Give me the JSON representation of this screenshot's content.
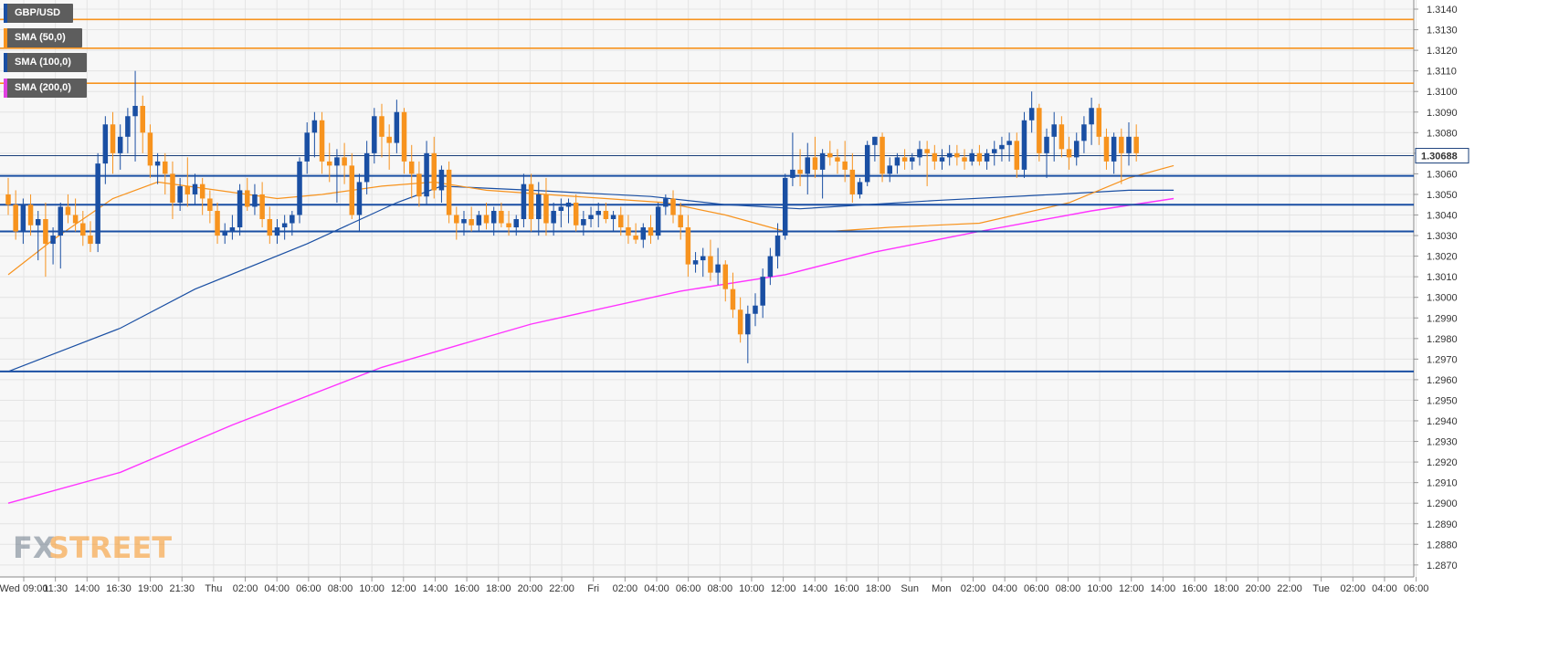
{
  "legend": [
    {
      "label": "GBP/USD",
      "color": "#1a4fa3"
    },
    {
      "label": "SMA (50,0)",
      "color": "#f7931e"
    },
    {
      "label": "SMA (100,0)",
      "color": "#1a4fa3"
    },
    {
      "label": "SMA (200,0)",
      "color": "#e040e0"
    }
  ],
  "price_tag": "1.30688",
  "logo": {
    "fx": "FX",
    "street": "STREET"
  },
  "colors": {
    "up": "#1a4fa3",
    "down": "#f7931e",
    "sma50": "#f7931e",
    "sma100": "#1a4fa3",
    "sma200": "#ff33ff",
    "level": "#1a4fa3",
    "resistance": "#f7931e"
  },
  "chart_data": {
    "type": "candlestick",
    "symbol": "GBP/USD",
    "ylim": [
      1.2865,
      1.3145
    ],
    "yticks": [
      "1.3140",
      "1.3130",
      "1.3120",
      "1.3110",
      "1.3100",
      "1.3090",
      "1.3080",
      "1.3070",
      "1.3060",
      "1.3050",
      "1.3040",
      "1.3030",
      "1.3020",
      "1.3010",
      "1.3000",
      "1.2990",
      "1.2980",
      "1.2970",
      "1.2960",
      "1.2950",
      "1.2940",
      "1.2930",
      "1.2920",
      "1.2910",
      "1.2900",
      "1.2890",
      "1.2880",
      "1.2870"
    ],
    "xticks": [
      "Wed 09:00",
      "11:30",
      "14:00",
      "16:30",
      "19:00",
      "21:30",
      "Thu",
      "02:00",
      "04:00",
      "06:00",
      "08:00",
      "10:00",
      "12:00",
      "14:00",
      "16:00",
      "18:00",
      "20:00",
      "22:00",
      "Fri",
      "02:00",
      "04:00",
      "06:00",
      "08:00",
      "10:00",
      "12:00",
      "14:00",
      "16:00",
      "18:00",
      "Sun",
      "Mon",
      "02:00",
      "04:00",
      "06:00",
      "08:00",
      "10:00",
      "12:00",
      "14:00",
      "16:00",
      "18:00",
      "20:00",
      "22:00",
      "Tue",
      "02:00",
      "04:00",
      "06:00"
    ],
    "horizontal_levels": [
      {
        "value": 1.3135,
        "kind": "resistance"
      },
      {
        "value": 1.3121,
        "kind": "resistance"
      },
      {
        "value": 1.3104,
        "kind": "resistance"
      },
      {
        "value": 1.30688,
        "kind": "current"
      },
      {
        "value": 1.3059,
        "kind": "support"
      },
      {
        "value": 1.3045,
        "kind": "support"
      },
      {
        "value": 1.3032,
        "kind": "support"
      },
      {
        "value": 1.2964,
        "kind": "support"
      }
    ],
    "candles": [
      [
        1.305,
        1.3058,
        1.304,
        1.3045
      ],
      [
        1.3045,
        1.3052,
        1.3028,
        1.3032
      ],
      [
        1.3032,
        1.3048,
        1.3026,
        1.3045
      ],
      [
        1.3045,
        1.305,
        1.303,
        1.3035
      ],
      [
        1.3035,
        1.3042,
        1.3018,
        1.3038
      ],
      [
        1.3038,
        1.3046,
        1.301,
        1.3026
      ],
      [
        1.3026,
        1.3034,
        1.3016,
        1.303
      ],
      [
        1.303,
        1.3046,
        1.3014,
        1.3044
      ],
      [
        1.3044,
        1.305,
        1.3036,
        1.304
      ],
      [
        1.304,
        1.3048,
        1.3032,
        1.3036
      ],
      [
        1.3036,
        1.3042,
        1.3025,
        1.303
      ],
      [
        1.303,
        1.3037,
        1.3022,
        1.3026
      ],
      [
        1.3026,
        1.307,
        1.3022,
        1.3065
      ],
      [
        1.3065,
        1.3088,
        1.3055,
        1.3084
      ],
      [
        1.3084,
        1.309,
        1.306,
        1.307
      ],
      [
        1.307,
        1.3084,
        1.3062,
        1.3078
      ],
      [
        1.3078,
        1.3092,
        1.307,
        1.3088
      ],
      [
        1.3088,
        1.311,
        1.3066,
        1.3093
      ],
      [
        1.3093,
        1.3098,
        1.307,
        1.308
      ],
      [
        1.308,
        1.3084,
        1.3058,
        1.3064
      ],
      [
        1.3064,
        1.307,
        1.3055,
        1.3066
      ],
      [
        1.3066,
        1.307,
        1.305,
        1.306
      ],
      [
        1.306,
        1.3066,
        1.3038,
        1.3046
      ],
      [
        1.3046,
        1.3058,
        1.3042,
        1.3054
      ],
      [
        1.3054,
        1.3068,
        1.3044,
        1.305
      ],
      [
        1.305,
        1.306,
        1.3045,
        1.3055
      ],
      [
        1.3055,
        1.3058,
        1.304,
        1.3048
      ],
      [
        1.3048,
        1.3052,
        1.3036,
        1.3042
      ],
      [
        1.3042,
        1.3046,
        1.3026,
        1.303
      ],
      [
        1.303,
        1.3036,
        1.3026,
        1.3032
      ],
      [
        1.3032,
        1.304,
        1.3028,
        1.3034
      ],
      [
        1.3034,
        1.3055,
        1.303,
        1.3052
      ],
      [
        1.3052,
        1.3058,
        1.3042,
        1.3044
      ],
      [
        1.3044,
        1.3055,
        1.304,
        1.305
      ],
      [
        1.305,
        1.3056,
        1.3034,
        1.3038
      ],
      [
        1.3038,
        1.3044,
        1.3026,
        1.303
      ],
      [
        1.303,
        1.3038,
        1.3026,
        1.3034
      ],
      [
        1.3034,
        1.304,
        1.3028,
        1.3036
      ],
      [
        1.3036,
        1.3042,
        1.303,
        1.304
      ],
      [
        1.304,
        1.3068,
        1.3036,
        1.3066
      ],
      [
        1.3066,
        1.3085,
        1.306,
        1.308
      ],
      [
        1.308,
        1.309,
        1.3068,
        1.3086
      ],
      [
        1.3086,
        1.309,
        1.306,
        1.3066
      ],
      [
        1.3066,
        1.3075,
        1.3056,
        1.3064
      ],
      [
        1.3064,
        1.3072,
        1.3046,
        1.3068
      ],
      [
        1.3068,
        1.3075,
        1.3055,
        1.3064
      ],
      [
        1.3064,
        1.307,
        1.3038,
        1.304
      ],
      [
        1.304,
        1.306,
        1.3032,
        1.3056
      ],
      [
        1.3056,
        1.3076,
        1.305,
        1.307
      ],
      [
        1.307,
        1.3092,
        1.3065,
        1.3088
      ],
      [
        1.3088,
        1.3094,
        1.3068,
        1.3078
      ],
      [
        1.3078,
        1.3084,
        1.3062,
        1.3075
      ],
      [
        1.3075,
        1.3096,
        1.307,
        1.309
      ],
      [
        1.309,
        1.3092,
        1.306,
        1.3066
      ],
      [
        1.3066,
        1.3074,
        1.3048,
        1.306
      ],
      [
        1.306,
        1.3066,
        1.3044,
        1.3049
      ],
      [
        1.3049,
        1.3076,
        1.3045,
        1.307
      ],
      [
        1.307,
        1.3078,
        1.3048,
        1.3052
      ],
      [
        1.3052,
        1.3064,
        1.3046,
        1.3062
      ],
      [
        1.3062,
        1.3066,
        1.3036,
        1.304
      ],
      [
        1.304,
        1.3044,
        1.3028,
        1.3036
      ],
      [
        1.3036,
        1.3042,
        1.303,
        1.3038
      ],
      [
        1.3038,
        1.3044,
        1.3032,
        1.3035
      ],
      [
        1.3035,
        1.3042,
        1.3032,
        1.304
      ],
      [
        1.304,
        1.3046,
        1.3033,
        1.3036
      ],
      [
        1.3036,
        1.3044,
        1.303,
        1.3042
      ],
      [
        1.3042,
        1.3046,
        1.3034,
        1.3036
      ],
      [
        1.3036,
        1.3042,
        1.303,
        1.3034
      ],
      [
        1.3034,
        1.304,
        1.303,
        1.3038
      ],
      [
        1.3038,
        1.306,
        1.3034,
        1.3055
      ],
      [
        1.3055,
        1.306,
        1.3032,
        1.3038
      ],
      [
        1.3038,
        1.3056,
        1.303,
        1.305
      ],
      [
        1.305,
        1.3058,
        1.303,
        1.3036
      ],
      [
        1.3036,
        1.3046,
        1.303,
        1.3042
      ],
      [
        1.3042,
        1.3048,
        1.3034,
        1.3044
      ],
      [
        1.3044,
        1.3048,
        1.3036,
        1.3046
      ],
      [
        1.3046,
        1.305,
        1.3032,
        1.3035
      ],
      [
        1.3035,
        1.3042,
        1.303,
        1.3038
      ],
      [
        1.3038,
        1.3044,
        1.3034,
        1.304
      ],
      [
        1.304,
        1.3046,
        1.3034,
        1.3042
      ],
      [
        1.3042,
        1.3046,
        1.3036,
        1.3038
      ],
      [
        1.3038,
        1.3042,
        1.3032,
        1.304
      ],
      [
        1.304,
        1.3044,
        1.303,
        1.3034
      ],
      [
        1.3034,
        1.304,
        1.3026,
        1.303
      ],
      [
        1.303,
        1.3036,
        1.3026,
        1.3028
      ],
      [
        1.3028,
        1.3036,
        1.3024,
        1.3034
      ],
      [
        1.3034,
        1.304,
        1.3026,
        1.303
      ],
      [
        1.303,
        1.3046,
        1.3028,
        1.3044
      ],
      [
        1.3044,
        1.305,
        1.304,
        1.3048
      ],
      [
        1.3048,
        1.3052,
        1.3036,
        1.304
      ],
      [
        1.304,
        1.3046,
        1.3028,
        1.3034
      ],
      [
        1.3034,
        1.304,
        1.301,
        1.3016
      ],
      [
        1.3016,
        1.3022,
        1.3012,
        1.3018
      ],
      [
        1.3018,
        1.3024,
        1.301,
        1.302
      ],
      [
        1.302,
        1.3028,
        1.3008,
        1.3012
      ],
      [
        1.3012,
        1.3024,
        1.3006,
        1.3016
      ],
      [
        1.3016,
        1.3018,
        1.2998,
        1.3004
      ],
      [
        1.3004,
        1.3012,
        1.299,
        1.2994
      ],
      [
        1.2994,
        1.3,
        1.2978,
        1.2982
      ],
      [
        1.2982,
        1.2996,
        1.2968,
        1.2992
      ],
      [
        1.2992,
        1.3002,
        1.2986,
        1.2996
      ],
      [
        1.2996,
        1.3014,
        1.299,
        1.301
      ],
      [
        1.301,
        1.3024,
        1.3006,
        1.302
      ],
      [
        1.302,
        1.3036,
        1.3014,
        1.303
      ],
      [
        1.303,
        1.306,
        1.3028,
        1.3058
      ],
      [
        1.3058,
        1.308,
        1.3054,
        1.3062
      ],
      [
        1.3062,
        1.3072,
        1.3054,
        1.306
      ],
      [
        1.306,
        1.3075,
        1.305,
        1.3068
      ],
      [
        1.3068,
        1.3078,
        1.3058,
        1.3062
      ],
      [
        1.3062,
        1.3072,
        1.3048,
        1.307
      ],
      [
        1.307,
        1.3076,
        1.3064,
        1.3068
      ],
      [
        1.3068,
        1.3072,
        1.306,
        1.3066
      ],
      [
        1.3066,
        1.3076,
        1.3056,
        1.3062
      ],
      [
        1.3062,
        1.307,
        1.3046,
        1.305
      ],
      [
        1.305,
        1.3058,
        1.3048,
        1.3056
      ],
      [
        1.3056,
        1.3076,
        1.3054,
        1.3074
      ],
      [
        1.3074,
        1.3078,
        1.3066,
        1.3078
      ],
      [
        1.3078,
        1.308,
        1.3056,
        1.306
      ],
      [
        1.306,
        1.3068,
        1.3056,
        1.3064
      ],
      [
        1.3064,
        1.307,
        1.306,
        1.3068
      ],
      [
        1.3068,
        1.3072,
        1.3062,
        1.3066
      ],
      [
        1.3066,
        1.307,
        1.3062,
        1.3068
      ],
      [
        1.3068,
        1.3076,
        1.3064,
        1.3072
      ],
      [
        1.3072,
        1.3076,
        1.3054,
        1.307
      ],
      [
        1.307,
        1.3074,
        1.3062,
        1.3066
      ],
      [
        1.3066,
        1.3072,
        1.3062,
        1.3068
      ],
      [
        1.3068,
        1.3074,
        1.3064,
        1.307
      ],
      [
        1.307,
        1.3074,
        1.3064,
        1.3068
      ],
      [
        1.3068,
        1.3072,
        1.3062,
        1.3066
      ],
      [
        1.3066,
        1.3072,
        1.3064,
        1.307
      ],
      [
        1.307,
        1.3074,
        1.3064,
        1.3066
      ],
      [
        1.3066,
        1.3072,
        1.3062,
        1.307
      ],
      [
        1.307,
        1.3076,
        1.3064,
        1.3072
      ],
      [
        1.3072,
        1.3078,
        1.3066,
        1.3074
      ],
      [
        1.3074,
        1.308,
        1.3066,
        1.3076
      ],
      [
        1.3076,
        1.308,
        1.3058,
        1.3062
      ],
      [
        1.3062,
        1.309,
        1.3058,
        1.3086
      ],
      [
        1.3086,
        1.31,
        1.308,
        1.3092
      ],
      [
        1.3092,
        1.3094,
        1.3066,
        1.307
      ],
      [
        1.307,
        1.3082,
        1.3058,
        1.3078
      ],
      [
        1.3078,
        1.309,
        1.3066,
        1.3084
      ],
      [
        1.3084,
        1.3088,
        1.3068,
        1.3072
      ],
      [
        1.3072,
        1.3078,
        1.3062,
        1.3068
      ],
      [
        1.3068,
        1.308,
        1.3064,
        1.3076
      ],
      [
        1.3076,
        1.3088,
        1.307,
        1.3084
      ],
      [
        1.3084,
        1.3097,
        1.3074,
        1.3092
      ],
      [
        1.3092,
        1.3094,
        1.3074,
        1.3078
      ],
      [
        1.3078,
        1.3082,
        1.3062,
        1.3066
      ],
      [
        1.3066,
        1.308,
        1.306,
        1.3078
      ],
      [
        1.3078,
        1.3082,
        1.3055,
        1.307
      ],
      [
        1.307,
        1.3085,
        1.3064,
        1.3078
      ],
      [
        1.3078,
        1.3084,
        1.3066,
        1.307
      ]
    ],
    "sma50": [
      [
        0,
        1.3011
      ],
      [
        6,
        1.3028
      ],
      [
        14,
        1.3048
      ],
      [
        20,
        1.3056
      ],
      [
        28,
        1.3052
      ],
      [
        36,
        1.3048
      ],
      [
        42,
        1.305
      ],
      [
        50,
        1.3054
      ],
      [
        57,
        1.3056
      ],
      [
        64,
        1.3052
      ],
      [
        72,
        1.305
      ],
      [
        80,
        1.3048
      ],
      [
        88,
        1.3046
      ],
      [
        96,
        1.304
      ],
      [
        104,
        1.3032
      ],
      [
        110,
        1.3032
      ],
      [
        118,
        1.3034
      ],
      [
        130,
        1.3036
      ],
      [
        142,
        1.3046
      ],
      [
        150,
        1.3058
      ],
      [
        156,
        1.3064
      ]
    ],
    "sma100": [
      [
        0,
        1.2964
      ],
      [
        15,
        1.2985
      ],
      [
        25,
        1.3004
      ],
      [
        40,
        1.3026
      ],
      [
        52,
        1.3046
      ],
      [
        58,
        1.3054
      ],
      [
        70,
        1.3052
      ],
      [
        86,
        1.3049
      ],
      [
        96,
        1.3045
      ],
      [
        106,
        1.3043
      ],
      [
        124,
        1.3047
      ],
      [
        140,
        1.305
      ],
      [
        150,
        1.3052
      ],
      [
        156,
        1.3052
      ]
    ],
    "sma200": [
      [
        0,
        1.29
      ],
      [
        15,
        1.2915
      ],
      [
        30,
        1.2938
      ],
      [
        50,
        1.2966
      ],
      [
        70,
        1.2987
      ],
      [
        90,
        1.3003
      ],
      [
        104,
        1.3011
      ],
      [
        116,
        1.3022
      ],
      [
        130,
        1.3032
      ],
      [
        145,
        1.3042
      ],
      [
        156,
        1.3048
      ]
    ]
  }
}
